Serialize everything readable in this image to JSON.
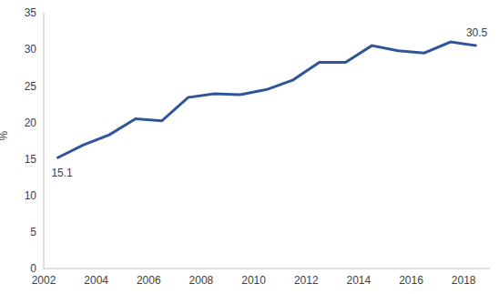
{
  "chart_data": {
    "type": "line",
    "x": [
      2002.5,
      2003.5,
      2004.5,
      2005.5,
      2006.5,
      2007.5,
      2008.5,
      2009.5,
      2010.5,
      2011.5,
      2012.5,
      2013.5,
      2014.5,
      2015.5,
      2016.5,
      2017.5,
      2018.5
    ],
    "values": [
      15.1,
      16.9,
      18.3,
      20.5,
      20.2,
      23.4,
      23.9,
      23.8,
      24.5,
      25.8,
      28.2,
      28.2,
      30.5,
      29.8,
      29.5,
      31.0,
      30.5
    ],
    "color": "#2f5597",
    "y_label": "%",
    "xlim": [
      2002,
      2019
    ],
    "xticks": [
      2002,
      2004,
      2006,
      2008,
      2010,
      2012,
      2014,
      2016,
      2018
    ],
    "ylim": [
      0,
      35
    ],
    "yticks": [
      0,
      5,
      10,
      15,
      20,
      25,
      30,
      35
    ],
    "grid": false,
    "annotations": [
      {
        "x": 2002.5,
        "y": 15.1,
        "text": "15.1"
      },
      {
        "x": 2018.5,
        "y": 30.5,
        "text": "30.5"
      }
    ]
  }
}
